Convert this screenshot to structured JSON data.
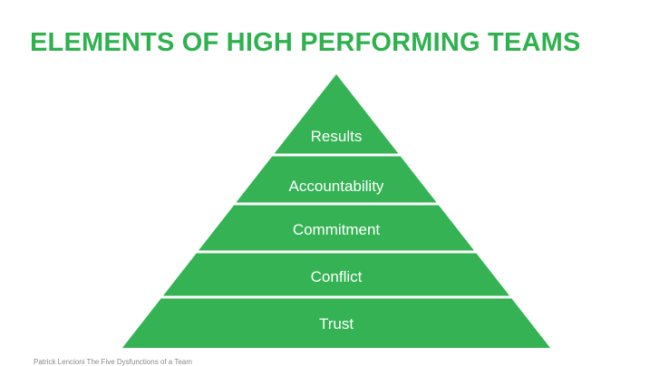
{
  "title": "ELEMENTS OF HIGH PERFORMING TEAMS",
  "pyramid": {
    "fill_color": "#34b254",
    "separator_color": "#ffffff",
    "levels": [
      {
        "label": "Results"
      },
      {
        "label": "Accountability"
      },
      {
        "label": "Commitment"
      },
      {
        "label": "Conflict"
      },
      {
        "label": "Trust"
      }
    ]
  },
  "attribution": "Patrick Lencioni The Five Dysfunctions of a Team"
}
